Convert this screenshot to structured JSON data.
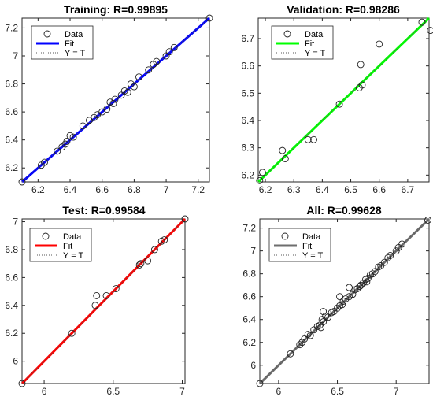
{
  "colors": {
    "marker": "#222222",
    "axis": "#262626",
    "identity": "#555555"
  },
  "chart_data": [
    {
      "type": "scatter",
      "title": "Training: R=0.99895",
      "xlim": [
        6.1,
        7.27
      ],
      "ylim": [
        6.1,
        7.27
      ],
      "xticks": [
        6.2,
        6.4,
        6.6,
        6.8,
        7,
        7.2
      ],
      "yticks": [
        6.2,
        6.4,
        6.6,
        6.8,
        7,
        7.2
      ],
      "legend": {
        "placement": "top-left",
        "entries": [
          "Data",
          "Fit",
          "Y = T"
        ]
      },
      "fit": {
        "color": "#0000ff",
        "slope": 1.0,
        "intercept": 0.0
      },
      "points": [
        [
          6.1,
          6.1
        ],
        [
          6.22,
          6.22
        ],
        [
          6.24,
          6.24
        ],
        [
          6.32,
          6.32
        ],
        [
          6.35,
          6.35
        ],
        [
          6.37,
          6.37
        ],
        [
          6.38,
          6.39
        ],
        [
          6.4,
          6.43
        ],
        [
          6.42,
          6.42
        ],
        [
          6.48,
          6.5
        ],
        [
          6.52,
          6.54
        ],
        [
          6.55,
          6.56
        ],
        [
          6.57,
          6.58
        ],
        [
          6.6,
          6.6
        ],
        [
          6.63,
          6.62
        ],
        [
          6.65,
          6.67
        ],
        [
          6.67,
          6.66
        ],
        [
          6.68,
          6.69
        ],
        [
          6.72,
          6.72
        ],
        [
          6.74,
          6.75
        ],
        [
          6.76,
          6.74
        ],
        [
          6.78,
          6.8
        ],
        [
          6.8,
          6.78
        ],
        [
          6.83,
          6.85
        ],
        [
          6.89,
          6.9
        ],
        [
          6.92,
          6.94
        ],
        [
          6.94,
          6.96
        ],
        [
          7.0,
          7.0
        ],
        [
          7.02,
          7.03
        ],
        [
          7.05,
          7.06
        ],
        [
          7.27,
          7.27
        ]
      ]
    },
    {
      "type": "scatter",
      "title": "Validation: R=0.98286",
      "xlim": [
        6.175,
        6.775
      ],
      "ylim": [
        6.175,
        6.775
      ],
      "xticks": [
        6.2,
        6.3,
        6.4,
        6.5,
        6.6,
        6.7
      ],
      "yticks": [
        6.2,
        6.3,
        6.4,
        6.5,
        6.6,
        6.7
      ],
      "legend": {
        "placement": "top-left",
        "entries": [
          "Data",
          "Fit",
          "Y = T"
        ]
      },
      "fit": {
        "color": "#00ff00",
        "slope": 1.0,
        "intercept": 0.0
      },
      "points": [
        [
          6.18,
          6.18
        ],
        [
          6.19,
          6.21
        ],
        [
          6.26,
          6.29
        ],
        [
          6.27,
          6.26
        ],
        [
          6.35,
          6.33
        ],
        [
          6.37,
          6.33
        ],
        [
          6.46,
          6.46
        ],
        [
          6.53,
          6.52
        ],
        [
          6.535,
          6.605
        ],
        [
          6.54,
          6.53
        ],
        [
          6.6,
          6.68
        ],
        [
          6.75,
          6.76
        ],
        [
          6.78,
          6.73
        ]
      ]
    },
    {
      "type": "scatter",
      "title": "Test: R=0.99584",
      "xlim": [
        5.84,
        7.02
      ],
      "ylim": [
        5.84,
        7.02
      ],
      "xticks": [
        6,
        6.5,
        7
      ],
      "yticks": [
        6,
        6.2,
        6.4,
        6.6,
        6.8,
        7
      ],
      "legend": {
        "placement": "top-left",
        "entries": [
          "Data",
          "Fit",
          "Y = T"
        ]
      },
      "fit": {
        "color": "#ff0000",
        "slope": 1.0,
        "intercept": 0.0
      },
      "points": [
        [
          5.84,
          5.84
        ],
        [
          6.2,
          6.2
        ],
        [
          6.37,
          6.4
        ],
        [
          6.38,
          6.47
        ],
        [
          6.45,
          6.47
        ],
        [
          6.52,
          6.52
        ],
        [
          6.69,
          6.69
        ],
        [
          6.7,
          6.7
        ],
        [
          6.75,
          6.72
        ],
        [
          6.8,
          6.8
        ],
        [
          6.85,
          6.86
        ],
        [
          6.87,
          6.87
        ],
        [
          7.02,
          7.02
        ]
      ]
    },
    {
      "type": "scatter",
      "title": "All: R=0.99628",
      "xlim": [
        5.84,
        7.28
      ],
      "ylim": [
        5.84,
        7.28
      ],
      "xticks": [
        6,
        6.5,
        7
      ],
      "yticks": [
        6,
        6.2,
        6.4,
        6.6,
        6.8,
        7,
        7.2
      ],
      "legend": {
        "placement": "top-left",
        "entries": [
          "Data",
          "Fit",
          "Y = T"
        ]
      },
      "fit": {
        "color": "#6e6e6e",
        "slope": 1.0,
        "intercept": 0.0
      },
      "points": [
        [
          5.84,
          5.84
        ],
        [
          6.1,
          6.1
        ],
        [
          6.18,
          6.18
        ],
        [
          6.2,
          6.2
        ],
        [
          6.22,
          6.23
        ],
        [
          6.25,
          6.27
        ],
        [
          6.27,
          6.26
        ],
        [
          6.3,
          6.31
        ],
        [
          6.33,
          6.34
        ],
        [
          6.35,
          6.35
        ],
        [
          6.36,
          6.33
        ],
        [
          6.37,
          6.4
        ],
        [
          6.38,
          6.47
        ],
        [
          6.38,
          6.38
        ],
        [
          6.4,
          6.43
        ],
        [
          6.42,
          6.42
        ],
        [
          6.45,
          6.46
        ],
        [
          6.47,
          6.47
        ],
        [
          6.5,
          6.5
        ],
        [
          6.52,
          6.52
        ],
        [
          6.52,
          6.6
        ],
        [
          6.54,
          6.53
        ],
        [
          6.55,
          6.56
        ],
        [
          6.57,
          6.58
        ],
        [
          6.6,
          6.68
        ],
        [
          6.6,
          6.6
        ],
        [
          6.63,
          6.62
        ],
        [
          6.65,
          6.66
        ],
        [
          6.67,
          6.67
        ],
        [
          6.69,
          6.69
        ],
        [
          6.7,
          6.7
        ],
        [
          6.72,
          6.72
        ],
        [
          6.74,
          6.75
        ],
        [
          6.75,
          6.73
        ],
        [
          6.76,
          6.76
        ],
        [
          6.78,
          6.79
        ],
        [
          6.8,
          6.8
        ],
        [
          6.82,
          6.82
        ],
        [
          6.85,
          6.86
        ],
        [
          6.87,
          6.87
        ],
        [
          6.9,
          6.9
        ],
        [
          6.93,
          6.94
        ],
        [
          6.95,
          6.96
        ],
        [
          7.0,
          7.0
        ],
        [
          7.02,
          7.03
        ],
        [
          7.05,
          7.06
        ],
        [
          7.27,
          7.27
        ]
      ]
    }
  ]
}
